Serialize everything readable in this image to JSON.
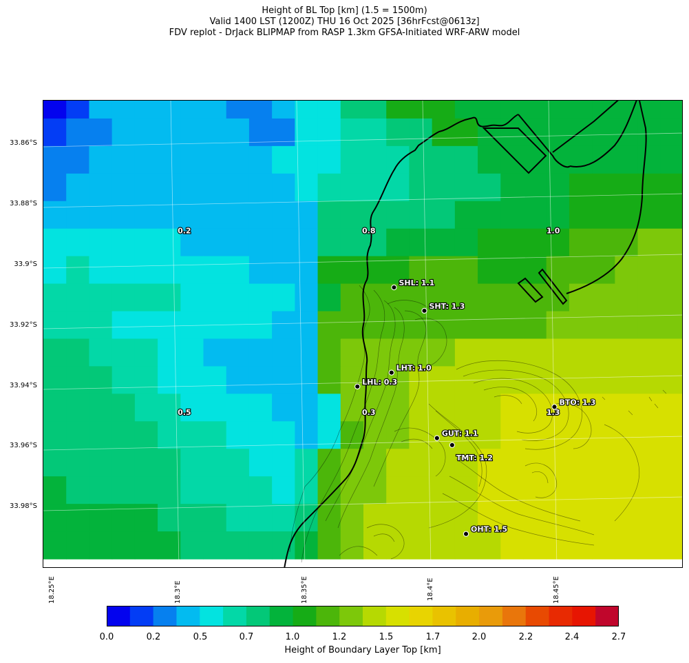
{
  "header": {
    "line1": "Height of BL Top [km] (1.5 = 1500m)",
    "line2": "Valid 1400 LST (1200Z) THU 16 Oct 2025 [36hrFcst@0613z]",
    "line3": "FDV replot - DrJack BLIPMAP from RASP 1.3km GFSA-Initiated WRF-ARW model"
  },
  "axes": {
    "y_ticks": [
      "33.86°S",
      "33.88°S",
      "33.9°S",
      "33.92°S",
      "33.94°S",
      "33.96°S",
      "33.98°S"
    ],
    "x_ticks": [
      "18.25°E",
      "18.3°E",
      "18.35°E",
      "18.4°E",
      "18.45°E"
    ]
  },
  "colorbar": {
    "title": "Height of Boundary Layer Top [km]",
    "tick_labels": [
      "0.0",
      "0.2",
      "0.5",
      "0.7",
      "1.0",
      "1.2",
      "1.5",
      "1.7",
      "2.0",
      "2.2",
      "2.4",
      "2.7"
    ],
    "colors": [
      "#0303ee",
      "#033df5",
      "#0680ef",
      "#03bbf0",
      "#03e3e0",
      "#03d8a7",
      "#03c878",
      "#03b33b",
      "#16ac16",
      "#4cb60a",
      "#7dc80a",
      "#b6d902",
      "#d7e000",
      "#e8d401",
      "#e9c200",
      "#e8ae00",
      "#e99b0a",
      "#e9760b",
      "#e84a02",
      "#e82a02",
      "#e71502",
      "#c0062c"
    ]
  },
  "value_grid": [
    [
      0,
      1,
      3,
      3,
      3,
      3,
      3,
      3,
      2,
      2,
      3,
      4,
      4,
      6,
      6,
      8,
      8,
      8,
      7,
      7,
      7,
      7,
      7,
      7,
      7,
      7,
      7,
      7
    ],
    [
      1,
      2,
      2,
      3,
      3,
      3,
      3,
      3,
      3,
      2,
      2,
      4,
      4,
      5,
      5,
      6,
      6,
      8,
      8,
      7,
      7,
      7,
      7,
      7,
      7,
      7,
      7,
      7
    ],
    [
      2,
      2,
      3,
      3,
      3,
      3,
      3,
      3,
      3,
      3,
      4,
      4,
      4,
      5,
      5,
      5,
      6,
      6,
      6,
      7,
      7,
      7,
      7,
      7,
      7,
      7,
      7,
      7
    ],
    [
      2,
      3,
      3,
      3,
      3,
      3,
      3,
      3,
      3,
      3,
      3,
      4,
      5,
      5,
      5,
      5,
      6,
      6,
      6,
      6,
      7,
      7,
      7,
      8,
      8,
      8,
      8,
      8
    ],
    [
      3,
      3,
      3,
      3,
      3,
      3,
      3,
      3,
      3,
      3,
      3,
      3,
      6,
      6,
      6,
      6,
      6,
      6,
      7,
      7,
      7,
      7,
      7,
      8,
      8,
      8,
      8,
      8
    ],
    [
      4,
      4,
      4,
      4,
      4,
      4,
      3,
      3,
      3,
      3,
      3,
      3,
      6,
      6,
      6,
      7,
      7,
      7,
      7,
      8,
      8,
      8,
      8,
      9,
      9,
      9,
      10,
      10
    ],
    [
      4,
      5,
      4,
      4,
      4,
      4,
      4,
      4,
      4,
      3,
      3,
      3,
      8,
      8,
      8,
      8,
      9,
      9,
      9,
      8,
      8,
      8,
      9,
      9,
      9,
      10,
      10,
      10
    ],
    [
      5,
      5,
      5,
      5,
      5,
      5,
      4,
      4,
      4,
      4,
      4,
      3,
      7,
      9,
      9,
      9,
      9,
      9,
      9,
      9,
      9,
      9,
      9,
      10,
      10,
      10,
      10,
      10
    ],
    [
      5,
      5,
      5,
      4,
      4,
      4,
      4,
      4,
      4,
      4,
      3,
      3,
      9,
      9,
      9,
      9,
      9,
      9,
      9,
      9,
      9,
      9,
      10,
      10,
      10,
      10,
      10,
      10
    ],
    [
      6,
      6,
      5,
      5,
      5,
      4,
      4,
      3,
      3,
      3,
      3,
      3,
      9,
      10,
      10,
      10,
      10,
      10,
      11,
      11,
      11,
      11,
      11,
      11,
      11,
      11,
      11,
      11
    ],
    [
      6,
      6,
      6,
      5,
      5,
      4,
      4,
      4,
      3,
      3,
      3,
      3,
      9,
      10,
      10,
      10,
      11,
      11,
      11,
      11,
      11,
      11,
      11,
      11,
      11,
      11,
      11,
      11
    ],
    [
      6,
      6,
      6,
      6,
      5,
      5,
      4,
      4,
      4,
      4,
      3,
      3,
      4,
      10,
      10,
      10,
      11,
      11,
      11,
      11,
      12,
      12,
      12,
      12,
      12,
      12,
      12,
      12
    ],
    [
      6,
      6,
      6,
      6,
      6,
      5,
      5,
      5,
      4,
      4,
      4,
      3,
      4,
      9,
      10,
      10,
      11,
      11,
      11,
      11,
      12,
      12,
      12,
      12,
      12,
      12,
      12,
      12
    ],
    [
      6,
      6,
      6,
      6,
      6,
      6,
      5,
      5,
      5,
      4,
      4,
      5,
      9,
      10,
      10,
      11,
      11,
      11,
      11,
      12,
      12,
      12,
      12,
      12,
      12,
      12,
      12,
      12
    ],
    [
      7,
      6,
      6,
      6,
      6,
      6,
      5,
      5,
      5,
      5,
      4,
      5,
      9,
      10,
      10,
      11,
      11,
      11,
      11,
      12,
      12,
      12,
      12,
      12,
      12,
      12,
      12,
      12
    ],
    [
      7,
      7,
      7,
      7,
      7,
      6,
      6,
      6,
      5,
      5,
      5,
      6,
      9,
      10,
      11,
      11,
      11,
      11,
      11,
      12,
      12,
      12,
      12,
      12,
      12,
      12,
      12,
      12
    ],
    [
      7,
      7,
      7,
      7,
      7,
      7,
      6,
      6,
      6,
      6,
      6,
      7,
      9,
      10,
      11,
      11,
      11,
      11,
      11,
      11,
      12,
      12,
      12,
      12,
      12,
      12,
      12,
      12
    ]
  ],
  "value_labels": [
    {
      "text": "0.2",
      "lon": 18.302,
      "lat": -33.8897
    },
    {
      "text": "0.8",
      "lon": 18.375,
      "lat": -33.8897
    },
    {
      "text": "1.0",
      "lon": 18.448,
      "lat": -33.8897
    },
    {
      "text": "0.5",
      "lon": 18.302,
      "lat": -33.9495
    },
    {
      "text": "0.3",
      "lon": 18.375,
      "lat": -33.9495
    },
    {
      "text": "1.3",
      "lon": 18.448,
      "lat": -33.9495
    }
  ],
  "sites": [
    {
      "text": "SHL: 1.1",
      "lon": 18.385,
      "lat": -33.9075
    },
    {
      "text": "SHT: 1.3",
      "lon": 18.397,
      "lat": -33.9152
    },
    {
      "text": "LHT: 1.0",
      "lon": 18.384,
      "lat": -33.9356
    },
    {
      "text": "LHL: 0.3",
      "lon": 18.3705,
      "lat": -33.9402
    },
    {
      "text": "BTO: 1.3",
      "lon": 18.4485,
      "lat": -33.9469
    },
    {
      "text": "GUT: 1.1",
      "lon": 18.402,
      "lat": -33.9572
    },
    {
      "text": "TMT: 1.2",
      "lon": 18.408,
      "lat": -33.9595
    },
    {
      "text": "OHT: 1.5",
      "lon": 18.4135,
      "lat": -33.9888
    }
  ]
}
